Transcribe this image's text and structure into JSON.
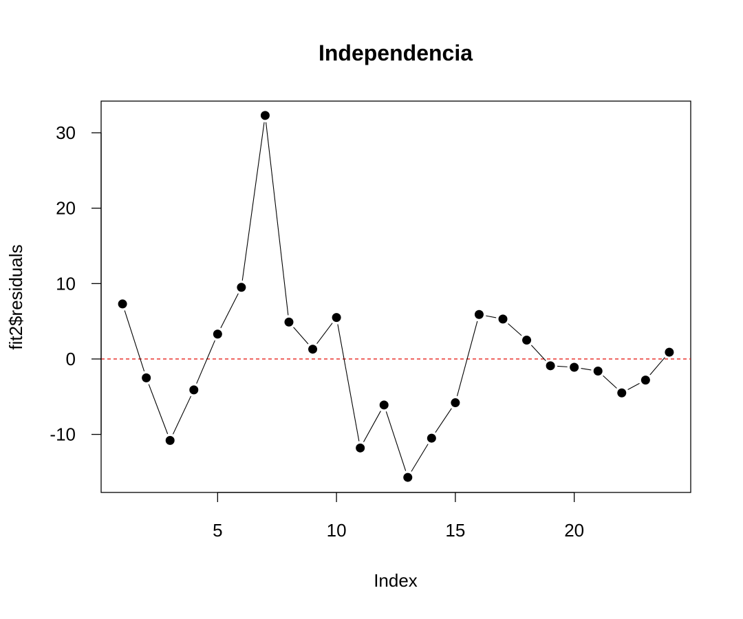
{
  "chart_data": {
    "type": "line",
    "title": "Independencia",
    "xlabel": "Index",
    "ylabel": "fit2$residuals",
    "xlim": [
      0.1,
      24.9
    ],
    "ylim": [
      -17.7,
      34.2
    ],
    "x_ticks": [
      5,
      10,
      15,
      20
    ],
    "y_ticks": [
      -10,
      0,
      10,
      20,
      30
    ],
    "x_tick_labels": [
      "5",
      "10",
      "15",
      "20"
    ],
    "y_tick_labels": [
      "-10",
      "0",
      "10",
      "20",
      "30"
    ],
    "series": [
      {
        "x": [
          1,
          2,
          3,
          4,
          5,
          6,
          7,
          8,
          9,
          10,
          11,
          12,
          13,
          14,
          15,
          16,
          17,
          18,
          19,
          20,
          21,
          22,
          23,
          24
        ],
        "values": [
          7.3,
          -2.5,
          -10.8,
          -4.1,
          3.3,
          9.5,
          32.3,
          4.9,
          1.3,
          5.5,
          -11.8,
          -6.1,
          -15.7,
          -10.5,
          -5.8,
          5.9,
          5.3,
          2.5,
          -0.9,
          -1.1,
          -1.6,
          -4.5,
          -2.8,
          0.9
        ],
        "color": "#000000",
        "marker": "filled-circle"
      }
    ],
    "reference_line": {
      "y": 0,
      "color": "#e8211a",
      "style": "dashed"
    },
    "grid": false,
    "legend": "none"
  }
}
